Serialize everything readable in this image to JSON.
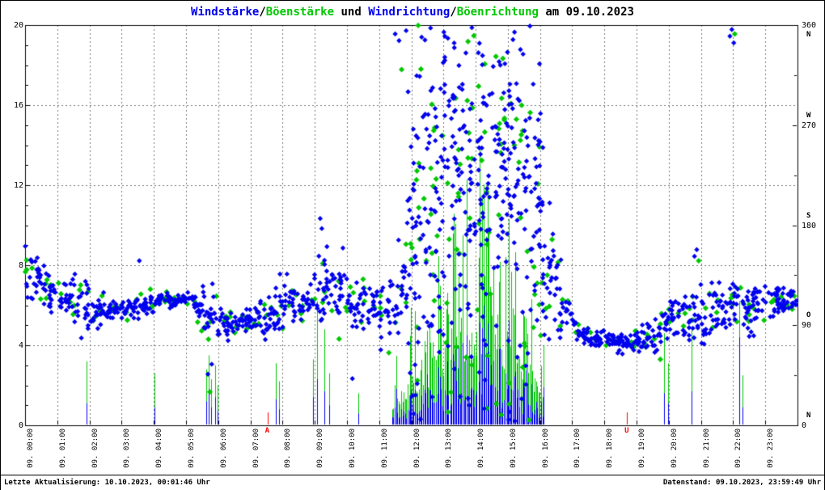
{
  "title": {
    "text": "Windstärke/Böenstärke und Windrichtung/Böenrichtung am 09.10.2023",
    "segments": [
      {
        "text": "Windstärke",
        "color": "#0000ee"
      },
      {
        "text": "/",
        "color": "#000000"
      },
      {
        "text": "Böenstärke",
        "color": "#00c800"
      },
      {
        "text": " und ",
        "color": "#000000"
      },
      {
        "text": "Windrichtung",
        "color": "#0000ee"
      },
      {
        "text": "/",
        "color": "#000000"
      },
      {
        "text": "Böenrichtung",
        "color": "#00c800"
      },
      {
        "text": " am 09.10.2023",
        "color": "#000000"
      }
    ]
  },
  "footer": {
    "left": "Letzte Aktualisierung: 10.10.2023, 00:01:46 Uhr",
    "right": "Datenstand: 09.10.2023, 23:59:49 Uhr"
  },
  "chart_data": {
    "type": "scatter",
    "date": "09.10.2023",
    "series": [
      {
        "name": "Windstärke",
        "color": "#0000ee",
        "style": "impulse",
        "axis": "left"
      },
      {
        "name": "Böenstärke",
        "color": "#00c800",
        "style": "impulse",
        "axis": "left"
      },
      {
        "name": "Windrichtung",
        "color": "#0000ee",
        "style": "diamond",
        "axis": "right"
      },
      {
        "name": "Böenrichtung",
        "color": "#00c800",
        "style": "diamond",
        "axis": "right"
      }
    ],
    "axes": {
      "left": {
        "min": 0,
        "max": 20,
        "ticks": [
          0,
          4,
          8,
          12,
          16,
          20
        ],
        "minor_step": 1
      },
      "right": {
        "min": 0,
        "max": 360,
        "ticks": [
          360,
          270,
          180,
          90,
          0
        ]
      },
      "x": {
        "min_hour": 0,
        "max_hour": 24,
        "grid": "dashed-hourly"
      }
    },
    "left_ticks": [
      20,
      16,
      12,
      8,
      4,
      0
    ],
    "right_ticks": [
      {
        "value": 360,
        "dir": "N"
      },
      {
        "value": 270,
        "dir": "W"
      },
      {
        "value": 180,
        "dir": "S"
      },
      {
        "value": 90,
        "dir": "O"
      },
      {
        "value": 0,
        "dir": "N"
      }
    ],
    "x_labels": [
      "09. 00:00",
      "09. 01:00",
      "09. 02:00",
      "09. 03:00",
      "09. 04:00",
      "09. 05:00",
      "09. 06:00",
      "09. 07:00",
      "09. 08:00",
      "09. 09:00",
      "09. 10:00",
      "09. 11:00",
      "09. 12:00",
      "09. 13:00",
      "09. 14:00",
      "09. 15:00",
      "09. 16:00",
      "09. 17:00",
      "09. 18:00",
      "09. 19:00",
      "09. 20:00",
      "09. 21:00",
      "09. 22:00",
      "09. 23:00"
    ],
    "sun_markers": [
      {
        "t": 7.53,
        "label": "A"
      },
      {
        "t": 18.7,
        "label": "U"
      }
    ],
    "direction_profile": {
      "interval_hours": 0.5,
      "mean_deg": [
        133,
        119,
        117,
        108,
        102,
        104,
        106,
        108,
        113,
        113,
        112,
        100,
        92,
        94,
        94,
        99,
        118,
        108,
        122,
        119,
        108,
        103,
        101,
        114,
        185,
        215,
        235,
        246,
        238,
        246,
        228,
        205,
        128,
        112,
        81,
        79,
        77,
        74,
        77,
        86,
        95,
        99,
        99,
        104,
        110,
        106,
        112,
        113
      ],
      "spread_deg": [
        12,
        8,
        8,
        14,
        8,
        4,
        4,
        7,
        3,
        3,
        3.5,
        16,
        5,
        4.5,
        6,
        12,
        12,
        10,
        14,
        13,
        10,
        12,
        14,
        25,
        85,
        85,
        78,
        72,
        80,
        72,
        80,
        88,
        38,
        9,
        4,
        4,
        3.5,
        4,
        6,
        9,
        11,
        14,
        14,
        12,
        9,
        11,
        7,
        5
      ],
      "wind_points_per_interval": [
        24,
        24,
        24,
        24,
        24,
        24,
        24,
        24,
        24,
        24,
        24,
        24,
        24,
        24,
        24,
        24,
        24,
        24,
        24,
        24,
        24,
        24,
        24,
        28,
        46,
        46,
        46,
        46,
        46,
        46,
        46,
        46,
        32,
        24,
        24,
        24,
        24,
        24,
        24,
        24,
        24,
        24,
        24,
        24,
        24,
        24,
        24,
        24
      ],
      "gust_points_per_interval": [
        4,
        4,
        4,
        4,
        4,
        4,
        4,
        4,
        4,
        4,
        4,
        4,
        4,
        4,
        4,
        4,
        4,
        4,
        4,
        4,
        4,
        4,
        4,
        6,
        12,
        12,
        12,
        12,
        12,
        12,
        12,
        12,
        6,
        4,
        4,
        4,
        4,
        4,
        4,
        4,
        4,
        4,
        4,
        4,
        4,
        4,
        4,
        4
      ],
      "uniform_fraction_in_storm": 0.15
    },
    "direction_outliers": [
      {
        "t": 0.05,
        "d": 140,
        "c": "g"
      },
      {
        "t": 3.55,
        "d": 148,
        "c": "b"
      },
      {
        "t": 5.68,
        "d": 46,
        "c": "b"
      },
      {
        "t": 5.74,
        "d": 30,
        "c": "g"
      },
      {
        "t": 5.8,
        "d": 55,
        "c": "b"
      },
      {
        "t": 7.92,
        "d": 136,
        "c": "b"
      },
      {
        "t": 9.17,
        "d": 186,
        "c": "b"
      },
      {
        "t": 9.22,
        "d": 177,
        "c": "b"
      },
      {
        "t": 10.17,
        "d": 42,
        "c": "b"
      },
      {
        "t": 11.5,
        "d": 352,
        "c": "b"
      },
      {
        "t": 11.62,
        "d": 346,
        "c": "b"
      },
      {
        "t": 11.7,
        "d": 320,
        "c": "g"
      },
      {
        "t": 11.84,
        "d": 355,
        "c": "b"
      },
      {
        "t": 11.9,
        "d": 300,
        "c": "b"
      },
      {
        "t": 16.3,
        "d": 200,
        "c": "b"
      },
      {
        "t": 16.4,
        "d": 172,
        "c": "b"
      },
      {
        "t": 20.8,
        "d": 152,
        "c": "b"
      },
      {
        "t": 20.87,
        "d": 158,
        "c": "b"
      },
      {
        "t": 20.93,
        "d": 148,
        "c": "g"
      },
      {
        "t": 21.9,
        "d": 350,
        "c": "b"
      },
      {
        "t": 21.96,
        "d": 356,
        "c": "b"
      },
      {
        "t": 22.02,
        "d": 344,
        "c": "b"
      },
      {
        "t": 22.05,
        "d": 352,
        "c": "g"
      },
      {
        "t": 22.5,
        "d": 80,
        "c": "b"
      },
      {
        "t": 22.56,
        "d": 84,
        "c": "b"
      }
    ],
    "gust_events": [
      [
        1.92,
        3.2,
        1.1
      ],
      [
        4.02,
        2.6,
        0.9
      ],
      [
        5.62,
        2.8,
        1.2
      ],
      [
        5.7,
        3.5,
        1.8
      ],
      [
        5.79,
        2.3,
        0.9
      ],
      [
        5.9,
        3.0,
        1.4
      ],
      [
        5.98,
        2.0,
        0.7
      ],
      [
        7.8,
        3.1,
        1.3
      ],
      [
        7.88,
        2.2,
        0.8
      ],
      [
        8.95,
        3.3,
        1.4
      ],
      [
        9.06,
        6.2,
        2.3
      ],
      [
        9.3,
        4.8,
        1.7
      ],
      [
        9.45,
        2.6,
        1.0
      ],
      [
        10.35,
        1.6,
        0.6
      ],
      [
        19.86,
        4.6,
        1.6
      ],
      [
        19.97,
        3.1,
        1.1
      ],
      [
        20.72,
        4.9,
        1.7
      ],
      [
        22.18,
        6.2,
        4.4
      ],
      [
        22.3,
        2.5,
        0.9
      ]
    ],
    "storm_window": {
      "start": 11.4,
      "end": 16.15,
      "step_h": 0.04,
      "gust_envelope": [
        [
          11.4,
          3.0
        ],
        [
          11.8,
          5.0
        ],
        [
          12.0,
          6.0
        ],
        [
          12.5,
          7.0
        ],
        [
          12.9,
          9.5
        ],
        [
          13.2,
          10.5
        ],
        [
          13.6,
          12.0
        ],
        [
          14.1,
          14.3
        ],
        [
          14.5,
          12.0
        ],
        [
          15.0,
          10.5
        ],
        [
          15.5,
          9.0
        ],
        [
          15.9,
          6.0
        ],
        [
          16.15,
          4.0
        ]
      ],
      "peak_gust_left_units": 14.3
    },
    "colors": {
      "wind": "#0000ee",
      "gust": "#00c800",
      "sun_marker": "#ff0000",
      "grid": "#777777",
      "frame": "#000000"
    }
  }
}
